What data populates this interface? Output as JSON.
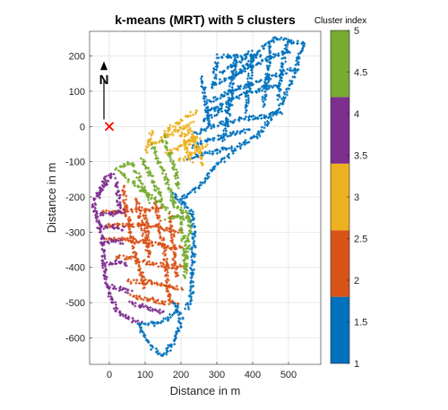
{
  "chart_data": {
    "type": "scatter",
    "title": "k-means (MRT) with 5 clusters",
    "xlabel": "Distance in m",
    "ylabel": "Distance in m",
    "xlim": [
      -55,
      590
    ],
    "ylim": [
      -675,
      270
    ],
    "xticks": [
      0,
      100,
      200,
      300,
      400,
      500
    ],
    "yticks": [
      200,
      100,
      0,
      -100,
      -200,
      -300,
      -400,
      -500,
      -600
    ],
    "grid": true,
    "colorbar": {
      "title": "Cluster index",
      "range": [
        1,
        5
      ],
      "ticks": [
        "1",
        "1.5",
        "2",
        "2.5",
        "3",
        "3.5",
        "4",
        "4.5",
        "5"
      ],
      "colors": [
        "#0072BD",
        "#D95319",
        "#EDB120",
        "#7E2F8E",
        "#77AC30"
      ]
    },
    "annotations": {
      "north_label": "N",
      "origin_marker": {
        "x": 0,
        "y": 0,
        "symbol": "x",
        "color": "#FF0000"
      }
    },
    "series": [
      {
        "cluster": 1,
        "color": "#0072BD",
        "segments": [
          [
            [
              355,
              145
            ],
            [
              400,
              195
            ],
            [
              460,
              250
            ],
            [
              540,
              235
            ],
            [
              520,
              160
            ],
            [
              480,
              60
            ],
            [
              420,
              -20
            ],
            [
              370,
              -50
            ],
            [
              300,
              -110
            ],
            [
              240,
              -180
            ],
            [
              200,
              -210
            ]
          ],
          [
            [
              300,
              200
            ],
            [
              340,
              200
            ],
            [
              380,
              200
            ],
            [
              420,
              200
            ]
          ],
          [
            [
              310,
              155
            ],
            [
              350,
              175
            ],
            [
              390,
              210
            ]
          ],
          [
            [
              290,
              120
            ],
            [
              340,
              140
            ],
            [
              380,
              160
            ],
            [
              420,
              180
            ],
            [
              460,
              200
            ],
            [
              500,
              215
            ]
          ],
          [
            [
              280,
              70
            ],
            [
              320,
              90
            ],
            [
              360,
              110
            ],
            [
              400,
              120
            ],
            [
              440,
              135
            ],
            [
              480,
              150
            ],
            [
              520,
              165
            ]
          ],
          [
            [
              270,
              40
            ],
            [
              310,
              60
            ],
            [
              350,
              80
            ],
            [
              390,
              95
            ],
            [
              430,
              110
            ],
            [
              480,
              120
            ]
          ],
          [
            [
              260,
              20
            ],
            [
              300,
              40
            ],
            [
              340,
              55
            ]
          ],
          [
            [
              240,
              -20
            ],
            [
              280,
              0
            ],
            [
              320,
              10
            ],
            [
              360,
              20
            ],
            [
              400,
              25
            ],
            [
              440,
              30
            ],
            [
              480,
              40
            ]
          ],
          [
            [
              230,
              -60
            ],
            [
              270,
              -40
            ],
            [
              310,
              -30
            ],
            [
              350,
              -20
            ],
            [
              390,
              -10
            ]
          ],
          [
            [
              220,
              -90
            ],
            [
              260,
              -80
            ],
            [
              300,
              -70
            ],
            [
              340,
              -60
            ]
          ],
          [
            [
              350,
              200
            ],
            [
              340,
              100
            ],
            [
              330,
              20
            ],
            [
              320,
              -40
            ]
          ],
          [
            [
              400,
              210
            ],
            [
              390,
              120
            ],
            [
              380,
              40
            ]
          ],
          [
            [
              450,
              235
            ],
            [
              440,
              140
            ],
            [
              430,
              60
            ]
          ],
          [
            [
              495,
              240
            ],
            [
              480,
              150
            ],
            [
              470,
              80
            ]
          ],
          [
            [
              260,
              140
            ],
            [
              270,
              60
            ],
            [
              280,
              0
            ]
          ],
          [
            [
              300,
              185
            ],
            [
              290,
              110
            ]
          ]
        ]
      },
      {
        "cluster": 2,
        "color": "#D95319",
        "segments": [
          [
            [
              40,
              -170
            ],
            [
              45,
              -220
            ],
            [
              55,
              -270
            ],
            [
              65,
              -330
            ],
            [
              75,
              -380
            ],
            [
              90,
              -420
            ],
            [
              100,
              -460
            ]
          ],
          [
            [
              75,
              -200
            ],
            [
              85,
              -260
            ],
            [
              100,
              -320
            ],
            [
              110,
              -370
            ]
          ],
          [
            [
              -20,
              -245
            ],
            [
              40,
              -240
            ],
            [
              100,
              -235
            ],
            [
              150,
              -230
            ]
          ],
          [
            [
              -10,
              -280
            ],
            [
              50,
              -280
            ],
            [
              110,
              -280
            ],
            [
              160,
              -290
            ],
            [
              200,
              -300
            ]
          ],
          [
            [
              -10,
              -320
            ],
            [
              50,
              -320
            ],
            [
              110,
              -330
            ],
            [
              160,
              -340
            ],
            [
              200,
              -345
            ]
          ],
          [
            [
              20,
              -370
            ],
            [
              70,
              -375
            ],
            [
              110,
              -390
            ],
            [
              160,
              -395
            ],
            [
              210,
              -400
            ]
          ],
          [
            [
              50,
              -440
            ],
            [
              110,
              -440
            ],
            [
              160,
              -450
            ],
            [
              200,
              -460
            ]
          ],
          [
            [
              130,
              -210
            ],
            [
              140,
              -280
            ],
            [
              150,
              -340
            ],
            [
              160,
              -400
            ],
            [
              165,
              -470
            ],
            [
              170,
              -500
            ]
          ],
          [
            [
              100,
              -240
            ],
            [
              105,
              -300
            ],
            [
              110,
              -360
            ]
          ],
          [
            [
              60,
              -480
            ],
            [
              110,
              -490
            ],
            [
              150,
              -500
            ],
            [
              190,
              -500
            ]
          ],
          [
            [
              170,
              -250
            ],
            [
              175,
              -310
            ],
            [
              180,
              -360
            ],
            [
              190,
              -430
            ]
          ]
        ]
      },
      {
        "cluster": 3,
        "color": "#EDB120",
        "segments": [
          [
            [
              150,
              -20
            ],
            [
              180,
              5
            ],
            [
              220,
              30
            ],
            [
              245,
              45
            ]
          ],
          [
            [
              110,
              -55
            ],
            [
              150,
              -35
            ],
            [
              190,
              -10
            ],
            [
              230,
              10
            ]
          ],
          [
            [
              160,
              -80
            ],
            [
              190,
              -60
            ],
            [
              220,
              -40
            ],
            [
              250,
              -30
            ]
          ],
          [
            [
              195,
              -100
            ],
            [
              220,
              -80
            ],
            [
              245,
              -65
            ],
            [
              270,
              -55
            ]
          ],
          [
            [
              200,
              -20
            ],
            [
              215,
              -60
            ],
            [
              230,
              -100
            ]
          ],
          [
            [
              230,
              -30
            ],
            [
              250,
              -70
            ],
            [
              260,
              -110
            ]
          ],
          [
            [
              205,
              -25
            ],
            [
              225,
              -10
            ],
            [
              240,
              -40
            ],
            [
              215,
              -50
            ]
          ],
          [
            [
              120,
              -10
            ],
            [
              110,
              -40
            ],
            [
              100,
              -70
            ]
          ]
        ]
      },
      {
        "cluster": 4,
        "color": "#7E2F8E",
        "segments": [
          [
            [
              -5,
              -140
            ],
            [
              -25,
              -180
            ],
            [
              -45,
              -225
            ],
            [
              -30,
              -270
            ],
            [
              -20,
              -320
            ],
            [
              -15,
              -380
            ],
            [
              -10,
              -430
            ],
            [
              0,
              -480
            ],
            [
              20,
              -520
            ],
            [
              55,
              -545
            ],
            [
              90,
              -560
            ]
          ],
          [
            [
              -35,
              -250
            ],
            [
              5,
              -250
            ],
            [
              45,
              -240
            ]
          ],
          [
            [
              -30,
              -285
            ],
            [
              10,
              -285
            ],
            [
              40,
              -290
            ]
          ],
          [
            [
              -25,
              -330
            ],
            [
              10,
              -325
            ],
            [
              40,
              -330
            ]
          ],
          [
            [
              -15,
              -390
            ],
            [
              20,
              -385
            ],
            [
              50,
              -390
            ]
          ],
          [
            [
              0,
              -450
            ],
            [
              30,
              -460
            ],
            [
              60,
              -470
            ]
          ],
          [
            [
              60,
              -500
            ],
            [
              90,
              -510
            ],
            [
              120,
              -520
            ],
            [
              150,
              -530
            ]
          ],
          [
            [
              10,
              -130
            ],
            [
              -10,
              -160
            ],
            [
              -35,
              -205
            ]
          ],
          [
            [
              20,
              -150
            ],
            [
              25,
              -200
            ],
            [
              30,
              -240
            ]
          ]
        ]
      },
      {
        "cluster": 5,
        "color": "#77AC30",
        "segments": [
          [
            [
              30,
              -130
            ],
            [
              55,
              -150
            ],
            [
              85,
              -175
            ],
            [
              110,
              -195
            ],
            [
              140,
              -215
            ],
            [
              165,
              -240
            ]
          ],
          [
            [
              60,
              -105
            ],
            [
              80,
              -140
            ],
            [
              100,
              -180
            ],
            [
              115,
              -215
            ]
          ],
          [
            [
              90,
              -90
            ],
            [
              110,
              -130
            ],
            [
              130,
              -175
            ],
            [
              150,
              -210
            ]
          ],
          [
            [
              120,
              -55
            ],
            [
              140,
              -100
            ],
            [
              160,
              -150
            ],
            [
              175,
              -200
            ],
            [
              180,
              -230
            ]
          ],
          [
            [
              150,
              -30
            ],
            [
              170,
              -80
            ],
            [
              185,
              -130
            ],
            [
              190,
              -175
            ]
          ],
          [
            [
              175,
              -215
            ],
            [
              200,
              -235
            ],
            [
              220,
              -250
            ],
            [
              225,
              -280
            ],
            [
              220,
              -330
            ],
            [
              215,
              -380
            ],
            [
              210,
              -430
            ]
          ],
          [
            [
              200,
              -240
            ],
            [
              205,
              -300
            ],
            [
              210,
              -360
            ],
            [
              215,
              -410
            ]
          ],
          [
            [
              160,
              -260
            ],
            [
              190,
              -255
            ],
            [
              220,
              -260
            ]
          ],
          [
            [
              20,
              -125
            ],
            [
              40,
              -110
            ],
            [
              60,
              -100
            ]
          ]
        ]
      },
      {
        "cluster": 1,
        "color": "#0072BD",
        "segments": [
          [
            [
              180,
              -500
            ],
            [
              200,
              -540
            ],
            [
              190,
              -590
            ],
            [
              170,
              -625
            ],
            [
              150,
              -650
            ],
            [
              120,
              -630
            ],
            [
              100,
              -590
            ],
            [
              80,
              -560
            ]
          ],
          [
            [
              90,
              -560
            ],
            [
              130,
              -560
            ],
            [
              165,
              -545
            ],
            [
              190,
              -520
            ]
          ],
          [
            [
              180,
              -190
            ],
            [
              210,
              -220
            ],
            [
              230,
              -250
            ],
            [
              235,
              -300
            ],
            [
              235,
              -360
            ],
            [
              230,
              -420
            ],
            [
              230,
              -480
            ],
            [
              215,
              -520
            ]
          ]
        ]
      }
    ]
  }
}
